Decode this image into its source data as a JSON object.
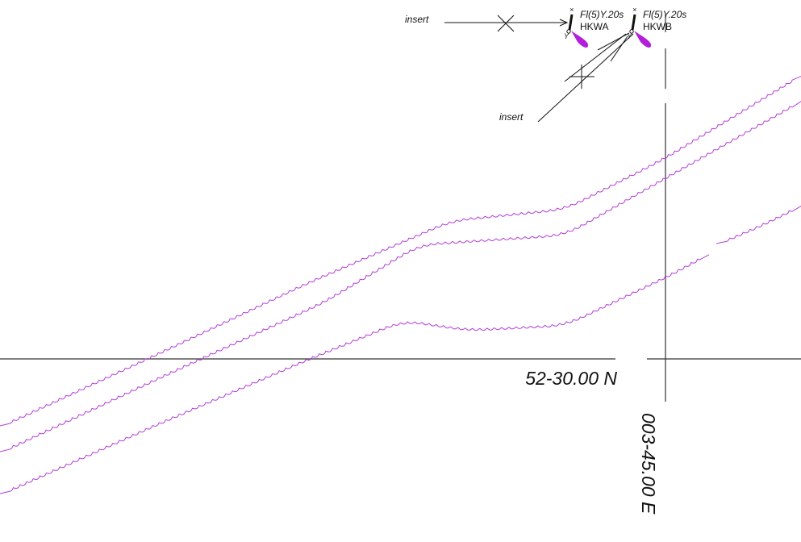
{
  "chart": {
    "latitude_label": "52-30.00 N",
    "longitude_label": "003-45.00 E"
  },
  "annotations": {
    "insert_top": "insert",
    "insert_bottom": "insert"
  },
  "buoys": [
    {
      "light": "Fl(5)Y.20s",
      "name": "HKWA",
      "topmark": "×",
      "color_code": "Y"
    },
    {
      "light": "Fl(5)Y.20s",
      "name": "HKWB",
      "topmark": "×",
      "color_code": "Y"
    }
  ],
  "colors": {
    "cable": "#b23cd6",
    "light_flare": "#b31fd9",
    "grid": "#333333",
    "text": "#111111"
  }
}
